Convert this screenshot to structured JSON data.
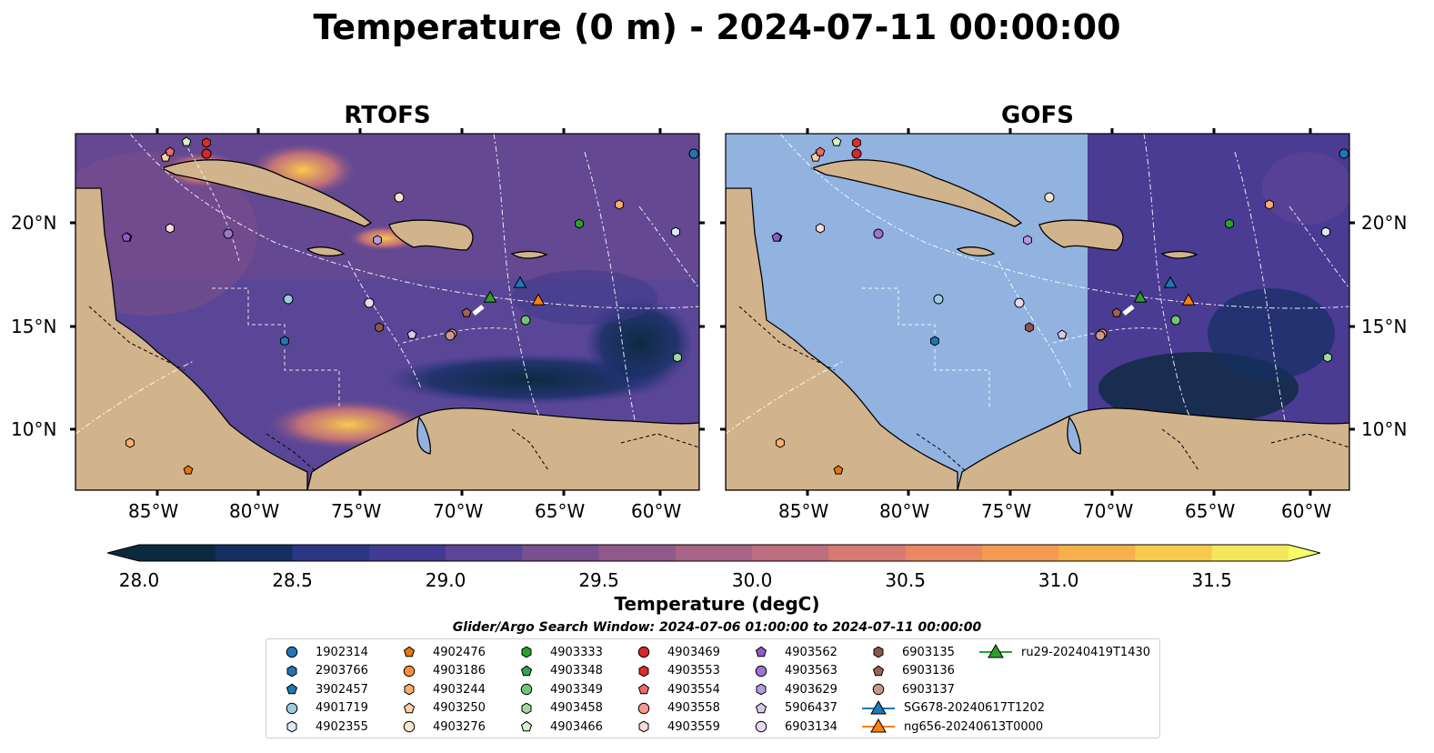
{
  "title": "Temperature (0 m) - 2024-07-11 00:00:00",
  "panels": [
    {
      "title": "RTOFS"
    },
    {
      "title": "GOFS"
    }
  ],
  "axes": {
    "lon_labels": [
      "85°W",
      "80°W",
      "75°W",
      "70°W",
      "65°W",
      "60°W"
    ],
    "lat_labels": [
      "20°N",
      "15°N",
      "10°N"
    ]
  },
  "colorbar": {
    "ticks": [
      "28.0",
      "28.5",
      "29.0",
      "29.5",
      "30.0",
      "30.5",
      "31.0",
      "31.5"
    ],
    "min": 28.0,
    "max": 31.75,
    "label": "Temperature (degC)",
    "colors": [
      "#0b2a3f",
      "#152f63",
      "#2b3585",
      "#403a95",
      "#5c4596",
      "#79508f",
      "#8f5a8a",
      "#a86387",
      "#c06d7f",
      "#d87a72",
      "#ea8862",
      "#f59a52",
      "#f8b04a",
      "#f8cb4e",
      "#f4e85a"
    ]
  },
  "search_window": "Glider/Argo Search Window: 2024-07-06 01:00:00 to 2024-07-11 00:00:00",
  "legend": [
    {
      "label": "1902314",
      "marker": "circle",
      "color": "#1f77b4"
    },
    {
      "label": "2903766",
      "marker": "hexagon",
      "color": "#1f77b4"
    },
    {
      "label": "3902457",
      "marker": "pentagon",
      "color": "#1f77b4"
    },
    {
      "label": "4901719",
      "marker": "circle",
      "color": "#9ecae1"
    },
    {
      "label": "4902355",
      "marker": "hexagon",
      "color": "#ddeaf6"
    },
    {
      "label": "4902476",
      "marker": "pentagon",
      "color": "#e6760e"
    },
    {
      "label": "4903186",
      "marker": "circle",
      "color": "#fd8d3c"
    },
    {
      "label": "4903244",
      "marker": "hexagon",
      "color": "#fdae6b"
    },
    {
      "label": "4903250",
      "marker": "pentagon",
      "color": "#fdd0a2"
    },
    {
      "label": "4903276",
      "marker": "circle",
      "color": "#fee6ce"
    },
    {
      "label": "4903333",
      "marker": "hexagon",
      "color": "#2ca02c"
    },
    {
      "label": "4903348",
      "marker": "pentagon",
      "color": "#31a354"
    },
    {
      "label": "4903349",
      "marker": "circle",
      "color": "#74c476"
    },
    {
      "label": "4903458",
      "marker": "hexagon",
      "color": "#a1d99b"
    },
    {
      "label": "4903466",
      "marker": "pentagon",
      "color": "#d4f2c8"
    },
    {
      "label": "4903469",
      "marker": "circle",
      "color": "#d62728"
    },
    {
      "label": "4903553",
      "marker": "hexagon",
      "color": "#de2d26"
    },
    {
      "label": "4903554",
      "marker": "pentagon",
      "color": "#ef6a6a"
    },
    {
      "label": "4903558",
      "marker": "circle",
      "color": "#f4978e"
    },
    {
      "label": "4903559",
      "marker": "hexagon",
      "color": "#fcdada"
    },
    {
      "label": "4903562",
      "marker": "pentagon",
      "color": "#8e5cc2"
    },
    {
      "label": "4903563",
      "marker": "circle",
      "color": "#9f73cf"
    },
    {
      "label": "4903629",
      "marker": "hexagon",
      "color": "#b79bde"
    },
    {
      "label": "5906437",
      "marker": "pentagon",
      "color": "#d9c8f0"
    },
    {
      "label": "6903134",
      "marker": "circle",
      "color": "#ead7f2"
    },
    {
      "label": "6903135",
      "marker": "hexagon",
      "color": "#8c564b"
    },
    {
      "label": "6903136",
      "marker": "pentagon",
      "color": "#9c6352"
    },
    {
      "label": "6903137",
      "marker": "circle",
      "color": "#c49a8a"
    },
    {
      "label": "SG678-20240617T1202",
      "marker": "triangle-line",
      "color": "#1f77b4"
    },
    {
      "label": "ng656-20240613T0000",
      "marker": "triangle-line",
      "color": "#ff7f0e"
    },
    {
      "label": "ru29-20240419T1430",
      "marker": "triangle-line",
      "color": "#2ca02c"
    }
  ],
  "colors": {
    "land": "#d1b48c",
    "no_data": "#92b3e0",
    "ocean_base": "#4b3c93"
  }
}
